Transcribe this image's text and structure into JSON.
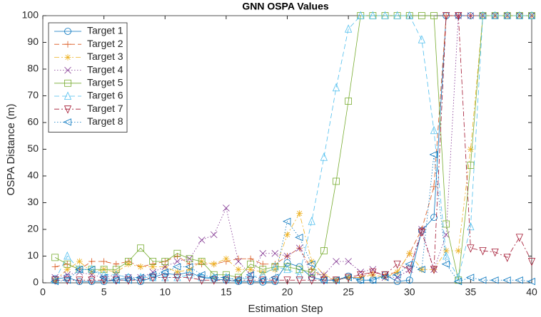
{
  "chart_data": {
    "type": "line",
    "title": "GNN OSPA Values",
    "x_label": "Estimation Step",
    "y_label": "OSPA Distance (m)",
    "x": [
      1,
      2,
      3,
      4,
      5,
      6,
      7,
      8,
      9,
      10,
      11,
      12,
      13,
      14,
      15,
      16,
      17,
      18,
      19,
      20,
      21,
      22,
      23,
      24,
      25,
      26,
      27,
      28,
      29,
      30,
      31,
      32,
      33,
      34,
      35,
      36,
      37,
      38,
      39,
      40
    ],
    "xlim": [
      0,
      40
    ],
    "xticks": [
      0,
      5,
      10,
      15,
      20,
      25,
      30,
      35,
      40
    ],
    "ylim": [
      0,
      100
    ],
    "yticks": [
      0,
      10,
      20,
      30,
      40,
      50,
      60,
      70,
      80,
      90,
      100
    ],
    "legend": "upper-left",
    "series": [
      {
        "name": "Target 1",
        "color": "#0072BD",
        "marker": "circle",
        "dash": "solid",
        "values": [
          1.5,
          2,
          0.5,
          0.5,
          0.5,
          1,
          2,
          0.5,
          2,
          3.5,
          3,
          4,
          2,
          1.5,
          1,
          0.5,
          0.5,
          0.3,
          0.5,
          7.5,
          6,
          2,
          1,
          1,
          2.5,
          1,
          1,
          3,
          0.5,
          1,
          19.5,
          24.5,
          100,
          100,
          100,
          100,
          100,
          100,
          100,
          100
        ]
      },
      {
        "name": "Target 2",
        "color": "#D95319",
        "marker": "plus",
        "dash": "dashed",
        "values": [
          6,
          7,
          5,
          8,
          8,
          7,
          8,
          6,
          7,
          8,
          10,
          7,
          7,
          7,
          8,
          9,
          9,
          7,
          7,
          10,
          13,
          5,
          2,
          1,
          2,
          2,
          4,
          3,
          4,
          11,
          20,
          36,
          100,
          100,
          100,
          100,
          100,
          100,
          100,
          100
        ]
      },
      {
        "name": "Target 3",
        "color": "#EDB120",
        "marker": "star",
        "dash": "dashdot",
        "values": [
          1,
          5,
          8,
          4,
          5,
          4,
          7,
          6,
          6,
          6,
          4,
          5,
          8,
          7,
          9,
          5,
          5,
          4,
          5,
          18,
          26,
          8,
          3,
          1,
          2,
          2,
          3,
          2,
          4,
          11,
          5,
          5,
          12,
          12,
          50,
          100,
          100,
          100,
          100,
          100
        ]
      },
      {
        "name": "Target 4",
        "color": "#7E2F8E",
        "marker": "x",
        "dash": "dotted",
        "values": [
          2,
          3,
          4,
          3,
          2,
          3,
          2,
          2,
          4,
          6,
          8,
          9,
          16,
          18,
          28,
          8,
          3,
          11,
          11,
          10,
          13,
          3,
          3,
          8,
          8,
          4,
          5,
          2,
          2,
          5,
          20,
          5,
          18,
          100,
          100,
          100,
          100,
          100,
          100,
          100
        ]
      },
      {
        "name": "Target 5",
        "color": "#77AC30",
        "marker": "square",
        "dash": "solid",
        "values": [
          9.5,
          7,
          5,
          5,
          5,
          5,
          8,
          13,
          8,
          8,
          11,
          9,
          8,
          3,
          3,
          2,
          7,
          5,
          6,
          6,
          5,
          4,
          12,
          38,
          68,
          100,
          100,
          100,
          100,
          100,
          100,
          100,
          22,
          1,
          44,
          100,
          100,
          100,
          100,
          100
        ]
      },
      {
        "name": "Target 6",
        "color": "#4DBEEE",
        "marker": "triangle-up",
        "dash": "dashed",
        "values": [
          1,
          10,
          5,
          5,
          3,
          3,
          2,
          2,
          2,
          2,
          2,
          3,
          2,
          2,
          2,
          1,
          2,
          3,
          6,
          5,
          3,
          23,
          47,
          73,
          95,
          100,
          100,
          100,
          100,
          100,
          91,
          57,
          10,
          2,
          21,
          100,
          100,
          100,
          100,
          100
        ]
      },
      {
        "name": "Target 7",
        "color": "#A2142F",
        "marker": "triangle-down",
        "dash": "dashdot",
        "values": [
          1,
          1,
          1,
          1,
          1,
          1,
          1,
          1,
          2,
          2,
          2,
          2,
          1,
          1,
          1,
          1,
          1,
          1,
          1,
          1,
          1,
          1,
          1,
          1,
          2,
          3,
          4,
          3,
          7,
          5,
          19,
          5,
          100,
          100,
          13,
          12,
          11.5,
          9.5,
          17,
          8
        ]
      },
      {
        "name": "Target 8",
        "color": "#0072BD",
        "marker": "triangle-left",
        "dash": "dotted",
        "values": [
          0.5,
          1,
          5,
          5,
          2,
          1,
          1,
          2,
          3,
          4,
          6,
          6,
          3,
          2,
          2,
          1,
          3,
          1,
          2,
          23,
          17,
          7,
          1,
          1,
          2,
          1,
          1,
          2,
          3,
          7,
          5,
          48,
          7,
          0.5,
          2,
          1,
          1,
          1,
          1,
          0.5
        ]
      }
    ]
  }
}
